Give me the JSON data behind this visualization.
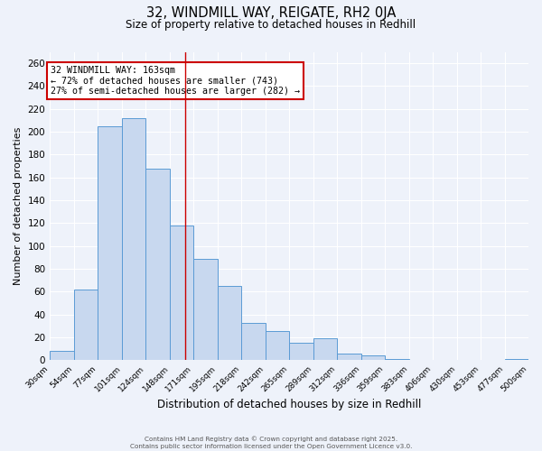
{
  "title_line1": "32, WINDMILL WAY, REIGATE, RH2 0JA",
  "title_line2": "Size of property relative to detached houses in Redhill",
  "xlabel": "Distribution of detached houses by size in Redhill",
  "ylabel": "Number of detached properties",
  "bar_edges": [
    30,
    54,
    77,
    101,
    124,
    148,
    171,
    195,
    218,
    242,
    265,
    289,
    312,
    336,
    359,
    383,
    406,
    430,
    453,
    477,
    500
  ],
  "bar_heights": [
    8,
    62,
    205,
    212,
    168,
    118,
    89,
    65,
    33,
    26,
    15,
    19,
    6,
    4,
    1,
    0,
    0,
    0,
    0,
    1
  ],
  "bar_fill_color": "#c8d8ef",
  "bar_edge_color": "#5b9bd5",
  "reference_line_x": 163,
  "reference_line_color": "#cc0000",
  "annotation_text": "32 WINDMILL WAY: 163sqm\n← 72% of detached houses are smaller (743)\n27% of semi-detached houses are larger (282) →",
  "annotation_box_edge_color": "#cc0000",
  "annotation_box_fill": "#ffffff",
  "ylim": [
    0,
    270
  ],
  "yticks": [
    0,
    20,
    40,
    60,
    80,
    100,
    120,
    140,
    160,
    180,
    200,
    220,
    240,
    260
  ],
  "background_color": "#eef2fa",
  "grid_color": "#ffffff",
  "footer_line1": "Contains HM Land Registry data © Crown copyright and database right 2025.",
  "footer_line2": "Contains public sector information licensed under the Open Government Licence v3.0."
}
